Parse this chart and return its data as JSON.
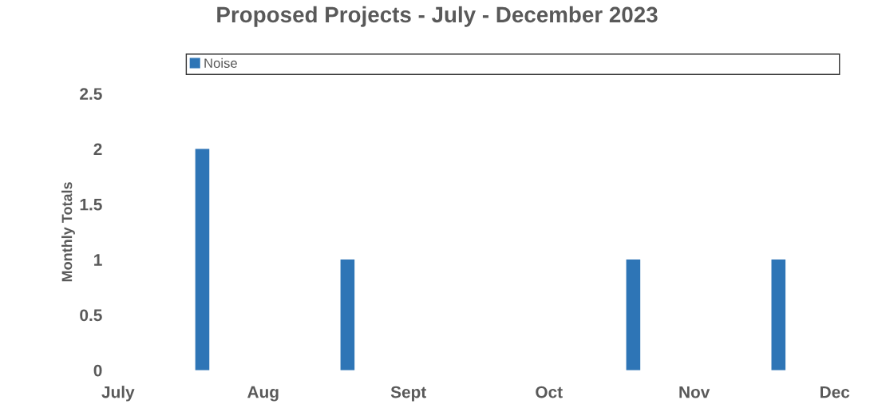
{
  "chart_data": {
    "type": "bar",
    "title": "Proposed Projects - July - December 2023",
    "ylabel": "Monthly Totals",
    "x": [
      "2023-07-19",
      "2023-08-19",
      "2023-10-19",
      "2023-11-19"
    ],
    "series": [
      {
        "name": "Noise",
        "color": "#2e75b6",
        "values": [
          2,
          1,
          1,
          1
        ]
      }
    ],
    "xlim": [
      "2023-07-01",
      "2023-12-01"
    ],
    "xticks": [
      {
        "value": "2023-07-01",
        "label": "July"
      },
      {
        "value": "2023-08-01",
        "label": "Aug"
      },
      {
        "value": "2023-09-01",
        "label": "Sept"
      },
      {
        "value": "2023-10-01",
        "label": "Oct"
      },
      {
        "value": "2023-11-01",
        "label": "Nov"
      },
      {
        "value": "2023-12-01",
        "label": "Dec"
      }
    ],
    "ylim": [
      0,
      2.5
    ],
    "yticks": [
      0,
      0.5,
      1,
      1.5,
      2,
      2.5
    ],
    "legend": "top"
  }
}
